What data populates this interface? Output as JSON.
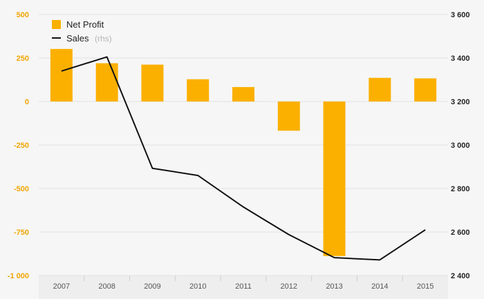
{
  "colors": {
    "bar": "#fbb000",
    "line": "#111111",
    "left_axis_text": "#f0a500",
    "right_axis_text": "#222222",
    "grid": "#e3e3e3",
    "background": "#f6f6f6",
    "x_strip": "#eeeeee"
  },
  "legend": {
    "items": [
      {
        "label": "Net Profit",
        "suffix": "",
        "marker": "square"
      },
      {
        "label": "Sales",
        "suffix": "(rhs)",
        "marker": "line"
      }
    ]
  },
  "chart_data": {
    "type": "bar",
    "title": "",
    "xlabel": "",
    "ylabel": "",
    "categories": [
      "2007",
      "2008",
      "2009",
      "2010",
      "2011",
      "2012",
      "2013",
      "2014",
      "2015"
    ],
    "legend_position": "top-left",
    "grid": true,
    "y_left": {
      "ticks": [
        500,
        250,
        0,
        -250,
        -500,
        -750,
        -1000
      ],
      "tick_labels": [
        "500",
        "250",
        "0",
        "-250",
        "-500",
        "-750",
        "-1 000"
      ],
      "ylim": [
        -1000,
        500
      ]
    },
    "y_right": {
      "ticks": [
        3600,
        3400,
        3200,
        3000,
        2800,
        2600,
        2400
      ],
      "tick_labels": [
        "3 600",
        "3 400",
        "3 200",
        "3 000",
        "2 800",
        "2 600",
        "2 400"
      ],
      "ylim": [
        2400,
        3600
      ]
    },
    "series": [
      {
        "name": "Net Profit",
        "type": "bar",
        "axis": "left",
        "values": [
          302,
          220,
          212,
          128,
          83,
          -168,
          -888,
          136,
          133
        ]
      },
      {
        "name": "Sales",
        "type": "line",
        "axis": "right",
        "values": [
          3340,
          3405,
          2893,
          2860,
          2715,
          2588,
          2482,
          2472,
          2610
        ]
      }
    ]
  }
}
